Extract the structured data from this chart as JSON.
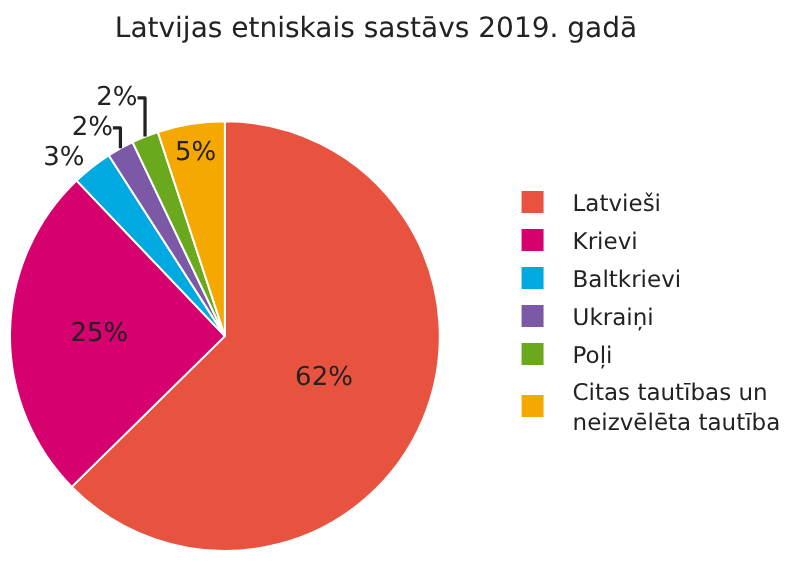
{
  "chart_data": {
    "type": "pie",
    "title": "Latvijas etniskais sastāvs 2019. gadā",
    "categories": [
      "Latvieši",
      "Krievi",
      "Baltkrievi",
      "Ukraiņi",
      "Poļi",
      "Citas tautības un neizvēlēta tautība"
    ],
    "values": [
      62,
      25,
      3,
      2,
      2,
      5
    ],
    "colors": [
      "#e8533f",
      "#d6006f",
      "#00a9e0",
      "#7b59a6",
      "#6aa81e",
      "#f5a800"
    ],
    "value_labels": [
      "62%",
      "25%",
      "3%",
      "2%",
      "2%",
      "5%"
    ],
    "legend": "right"
  }
}
